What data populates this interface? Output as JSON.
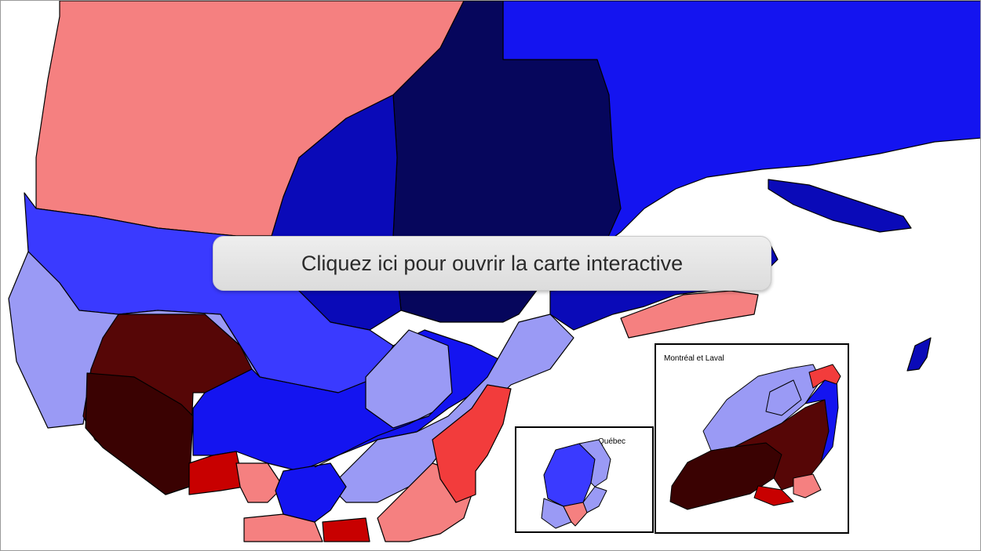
{
  "map": {
    "cta_label": "Cliquez ici pour ouvrir la carte interactive",
    "legend_colors": {
      "dark_navy": "#06065c",
      "navy": "#0a0ab8",
      "blue": "#1414f0",
      "medium_blue": "#3a3aff",
      "light_blue": "#9a9af5",
      "salmon": "#f58080",
      "red": "#f23c3c",
      "dark_red": "#c80000",
      "maroon": "#560606",
      "dark_maroon": "#3a0202",
      "grey": "#d4d4d4"
    }
  },
  "insets": {
    "quebec": {
      "label": "Québec"
    },
    "montreal": {
      "label": "Montréal et Laval"
    }
  }
}
